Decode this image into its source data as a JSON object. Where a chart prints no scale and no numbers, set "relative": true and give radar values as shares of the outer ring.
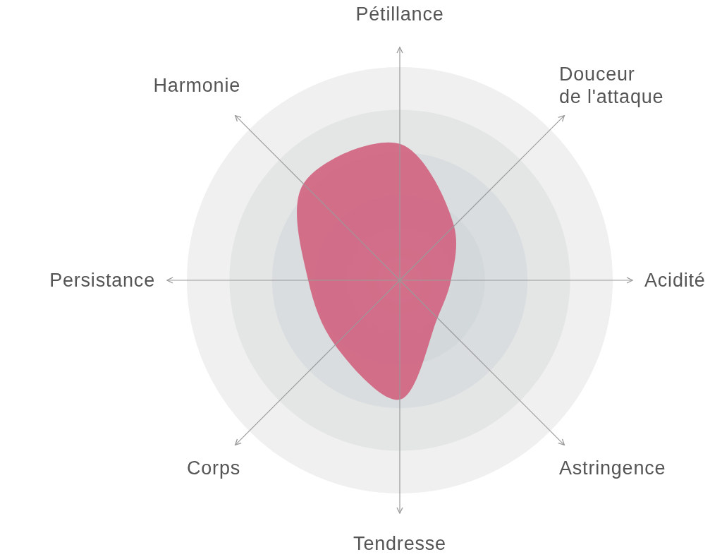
{
  "chart_data": {
    "type": "radar",
    "relative": true,
    "grid": true,
    "categories": [
      "Pétillance",
      "Douceur de l'attaque",
      "Acidité",
      "Astringence",
      "Tendresse",
      "Corps",
      "Persistance",
      "Harmonie"
    ],
    "series": [
      {
        "color": "#d2627f",
        "values": [
          0.64,
          0.36,
          0.24,
          0.25,
          0.56,
          0.43,
          0.43,
          0.64
        ]
      }
    ]
  }
}
